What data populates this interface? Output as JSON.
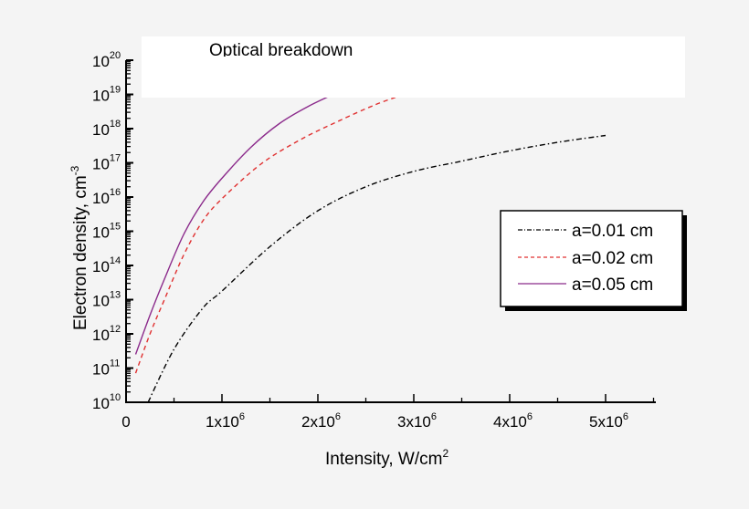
{
  "chart_data": {
    "type": "line",
    "title": "",
    "annotation": "Optical breakdown",
    "xlabel": "Intensity, W/cm",
    "xlabel_superscript": "2",
    "ylabel": "Electron density, cm",
    "ylabel_superscript": "-3",
    "xscale": "linear",
    "yscale": "log",
    "xlim": [
      0,
      5500000
    ],
    "ylim": [
      10000000000.0,
      1e+20
    ],
    "x_ticks": [
      {
        "value": 0,
        "label": "0",
        "sup": ""
      },
      {
        "value": 1000000,
        "label": "1x10",
        "sup": "6"
      },
      {
        "value": 2000000,
        "label": "2x10",
        "sup": "6"
      },
      {
        "value": 3000000,
        "label": "3x10",
        "sup": "6"
      },
      {
        "value": 4000000,
        "label": "4x10",
        "sup": "6"
      },
      {
        "value": 5000000,
        "label": "5x10",
        "sup": "6"
      }
    ],
    "y_ticks": [
      {
        "exp": 10,
        "label": "10",
        "sup": "10"
      },
      {
        "exp": 11,
        "label": "10",
        "sup": "11"
      },
      {
        "exp": 12,
        "label": "10",
        "sup": "12"
      },
      {
        "exp": 13,
        "label": "10",
        "sup": "13"
      },
      {
        "exp": 14,
        "label": "10",
        "sup": "14"
      },
      {
        "exp": 15,
        "label": "10",
        "sup": "15"
      },
      {
        "exp": 16,
        "label": "10",
        "sup": "16"
      },
      {
        "exp": 17,
        "label": "10",
        "sup": "17"
      },
      {
        "exp": 18,
        "label": "10",
        "sup": "18"
      },
      {
        "exp": 19,
        "label": "10",
        "sup": "19"
      },
      {
        "exp": 20,
        "label": "10",
        "sup": "20"
      }
    ],
    "grid": false,
    "legend_position": "right-middle",
    "breakdown_threshold": 1e+19,
    "series": [
      {
        "name": "a=0.01 cm",
        "color": "#000000",
        "dash": "dash-dot",
        "x": [
          230000,
          500000,
          800000,
          1000000,
          1500000,
          2000000,
          2500000,
          3000000,
          3500000,
          4000000,
          4500000,
          5000000
        ],
        "log10y": [
          10.0,
          11.55,
          12.75,
          13.25,
          14.55,
          15.6,
          16.3,
          16.75,
          17.05,
          17.35,
          17.6,
          17.8
        ]
      },
      {
        "name": "a=0.02 cm",
        "color": "#e03030",
        "dash": "dashed",
        "x": [
          100000,
          250000,
          400000,
          600000,
          800000,
          1000000,
          1400000,
          1800000,
          2200000,
          2600000,
          2900000
        ],
        "log10y": [
          10.85,
          12.0,
          13.0,
          14.3,
          15.3,
          15.95,
          16.95,
          17.65,
          18.2,
          18.7,
          19.0
        ]
      },
      {
        "name": "a=0.05 cm",
        "color": "#8b2a8b",
        "dash": "solid",
        "x": [
          100000,
          250000,
          400000,
          600000,
          800000,
          1000000,
          1300000,
          1600000,
          1900000,
          2200000
        ],
        "log10y": [
          11.4,
          12.55,
          13.6,
          14.9,
          15.85,
          16.55,
          17.45,
          18.15,
          18.65,
          19.05
        ]
      }
    ]
  },
  "legend": {
    "items": [
      {
        "label": "a=0.01 cm"
      },
      {
        "label": "a=0.02 cm"
      },
      {
        "label": "a=0.05 cm"
      }
    ]
  }
}
